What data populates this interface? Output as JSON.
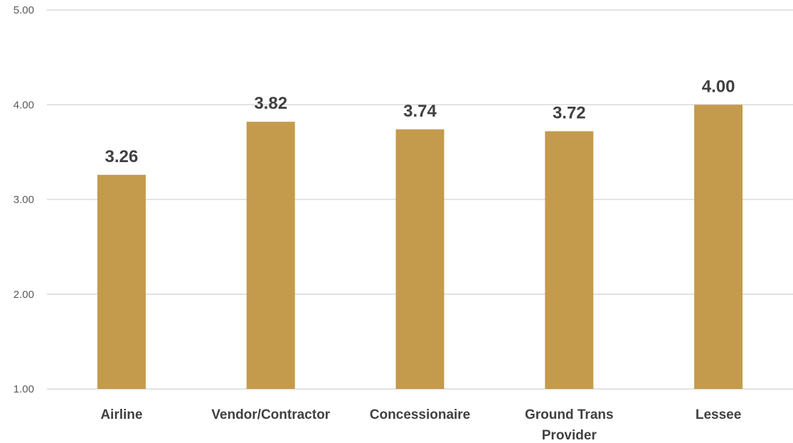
{
  "chart_data": {
    "type": "bar",
    "title": "",
    "xlabel": "",
    "ylabel": "",
    "categories": [
      [
        "Airline"
      ],
      [
        "Vendor/Contractor"
      ],
      [
        "Concessionaire"
      ],
      [
        "Ground Trans",
        "Provider"
      ],
      [
        "Lessee"
      ]
    ],
    "values": [
      3.26,
      3.82,
      3.74,
      3.72,
      4.0
    ],
    "data_labels": [
      "3.26",
      "3.82",
      "3.74",
      "3.72",
      "4.00"
    ],
    "ylim": [
      1,
      5
    ],
    "yticks": [
      "1.00",
      "2.00",
      "3.00",
      "4.00",
      "5.00"
    ],
    "grid": true,
    "legend": "none",
    "bar_color": "#C49B4C",
    "grid_color": "#D9D9D9"
  }
}
